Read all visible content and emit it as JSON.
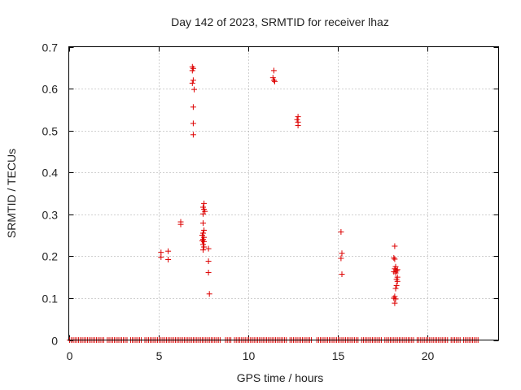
{
  "chart_data": {
    "type": "scatter",
    "title": "Day 142 of 2023, SRMTID for receiver lhaz",
    "xlabel": "GPS time / hours",
    "ylabel": "SRMTID / TECUs",
    "xlim": [
      0,
      24
    ],
    "ylim": [
      0,
      0.7
    ],
    "xticks": [
      0,
      5,
      10,
      15,
      20
    ],
    "yticks": [
      0,
      0.1,
      0.2,
      0.3,
      0.4,
      0.5,
      0.6,
      0.7
    ],
    "xtick_labels": [
      "0",
      "5",
      "10",
      "15",
      "20"
    ],
    "ytick_labels": [
      "0",
      "0.1",
      "0.2",
      "0.3",
      "0.4",
      "0.5",
      "0.6",
      "0.7"
    ],
    "grid": true,
    "marker": "+",
    "color": "#dd0000",
    "series": [
      {
        "name": "SRMTID",
        "points": [
          [
            5.15,
            0.209
          ],
          [
            5.15,
            0.198
          ],
          [
            5.55,
            0.212
          ],
          [
            5.55,
            0.192
          ],
          [
            6.25,
            0.282
          ],
          [
            6.25,
            0.276
          ],
          [
            6.9,
            0.652
          ],
          [
            6.95,
            0.648
          ],
          [
            6.9,
            0.643
          ],
          [
            6.95,
            0.62
          ],
          [
            6.9,
            0.613
          ],
          [
            7.0,
            0.598
          ],
          [
            6.95,
            0.556
          ],
          [
            6.95,
            0.517
          ],
          [
            6.95,
            0.49
          ],
          [
            7.55,
            0.326
          ],
          [
            7.5,
            0.317
          ],
          [
            7.55,
            0.312
          ],
          [
            7.6,
            0.307
          ],
          [
            7.5,
            0.301
          ],
          [
            7.5,
            0.279
          ],
          [
            7.55,
            0.262
          ],
          [
            7.5,
            0.255
          ],
          [
            7.45,
            0.25
          ],
          [
            7.55,
            0.245
          ],
          [
            7.5,
            0.24
          ],
          [
            7.45,
            0.237
          ],
          [
            7.55,
            0.235
          ],
          [
            7.5,
            0.228
          ],
          [
            7.55,
            0.222
          ],
          [
            7.5,
            0.215
          ],
          [
            7.8,
            0.218
          ],
          [
            7.8,
            0.188
          ],
          [
            7.8,
            0.161
          ],
          [
            7.85,
            0.11
          ],
          [
            11.45,
            0.643
          ],
          [
            11.4,
            0.626
          ],
          [
            11.45,
            0.62
          ],
          [
            11.5,
            0.617
          ],
          [
            12.8,
            0.533
          ],
          [
            12.75,
            0.526
          ],
          [
            12.8,
            0.52
          ],
          [
            12.8,
            0.512
          ],
          [
            15.2,
            0.258
          ],
          [
            15.25,
            0.207
          ],
          [
            15.2,
            0.195
          ],
          [
            15.25,
            0.157
          ],
          [
            18.2,
            0.224
          ],
          [
            18.15,
            0.196
          ],
          [
            18.2,
            0.193
          ],
          [
            18.25,
            0.175
          ],
          [
            18.2,
            0.17
          ],
          [
            18.35,
            0.168
          ],
          [
            18.3,
            0.165
          ],
          [
            18.15,
            0.163
          ],
          [
            18.25,
            0.16
          ],
          [
            18.35,
            0.15
          ],
          [
            18.3,
            0.145
          ],
          [
            18.35,
            0.14
          ],
          [
            18.3,
            0.13
          ],
          [
            18.25,
            0.123
          ],
          [
            18.2,
            0.104
          ],
          [
            18.15,
            0.1
          ],
          [
            18.25,
            0.098
          ],
          [
            18.2,
            0.088
          ]
        ],
        "zero_baseline_ranges": [
          [
            0.05,
            22.9
          ]
        ],
        "zero_baseline_gaps": [
          [
            2.0,
            2.15
          ],
          [
            3.3,
            3.4
          ],
          [
            4.1,
            4.2
          ],
          [
            8.5,
            8.65
          ],
          [
            9.1,
            9.2
          ],
          [
            12.2,
            12.3
          ],
          [
            13.6,
            13.75
          ],
          [
            16.2,
            16.3
          ],
          [
            17.5,
            17.6
          ],
          [
            19.3,
            19.4
          ],
          [
            21.2,
            21.3
          ],
          [
            21.9,
            22.0
          ]
        ],
        "zero_baseline_step": 0.1
      }
    ]
  }
}
